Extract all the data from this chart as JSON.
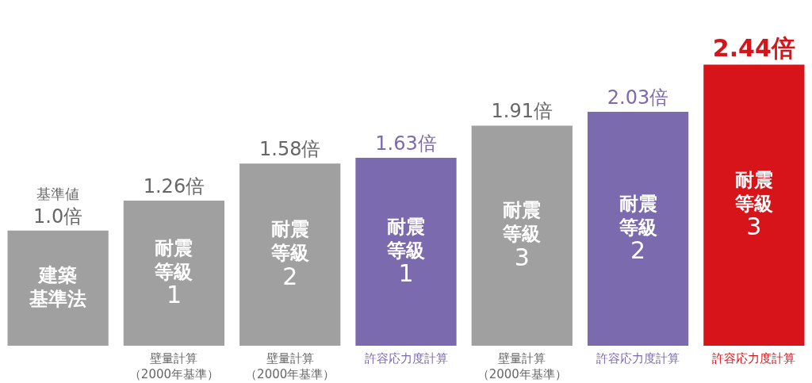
{
  "chart_data": {
    "type": "bar",
    "categories": [
      null,
      "壁量計算（2000年基準）",
      "壁量計算（2000年基準）",
      "許容応力度計算",
      "壁量計算（2000年基準）",
      "許容応力度計算",
      "許容応力度計算"
    ],
    "values": [
      1.0,
      1.26,
      1.58,
      1.63,
      1.91,
      2.03,
      2.44
    ],
    "colors": [
      "#a0a0a0",
      "#a0a0a0",
      "#a0a0a0",
      "#7b6aae",
      "#a0a0a0",
      "#7b6aae",
      "#d7141a"
    ],
    "value_labels": [
      "基準値\n1.0倍",
      "1.26倍",
      "1.58倍",
      "1.63倍",
      "1.91倍",
      "2.03倍",
      "2.44倍"
    ],
    "annotations": [
      "建築基準法",
      "耐震等級1",
      "耐震等級2",
      "耐震等級1",
      "耐震等級3",
      "耐震等級2",
      "耐震等級3"
    ],
    "legend": false
  }
}
